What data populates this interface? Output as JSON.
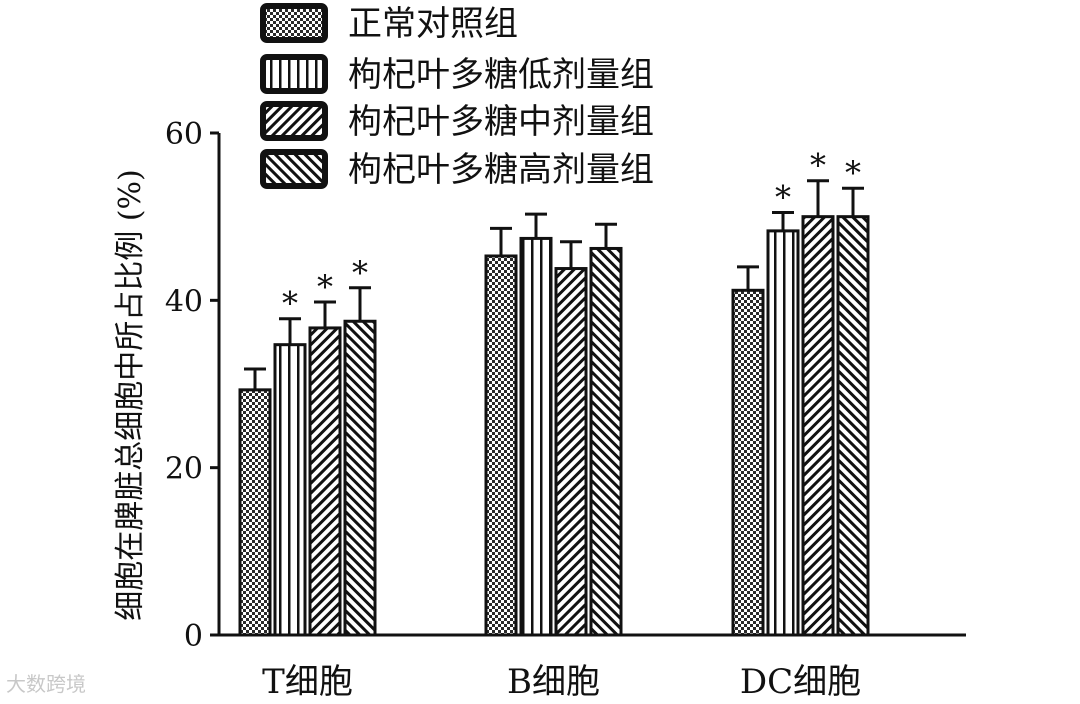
{
  "chart_data": {
    "type": "bar",
    "categories": [
      "T细胞",
      "B细胞",
      "DC细胞"
    ],
    "ylabel": "细胞在脾脏总细胞中所占比例 (%)",
    "xlabel": "",
    "ylim": [
      0,
      60
    ],
    "yticks": [
      0,
      20,
      40,
      60
    ],
    "legend_position": "top",
    "series": [
      {
        "name": "正常对照组",
        "pattern": "checker",
        "values": [
          29.3,
          45.3,
          41.2
        ],
        "errors": [
          2.5,
          3.3,
          2.8
        ],
        "significant": [
          false,
          false,
          false
        ]
      },
      {
        "name": "枸杞叶多糖低剂量组",
        "pattern": "vertical",
        "values": [
          34.7,
          47.4,
          48.3
        ],
        "errors": [
          3.1,
          2.9,
          2.2
        ],
        "significant": [
          true,
          false,
          true
        ]
      },
      {
        "name": "枸杞叶多糖中剂量组",
        "pattern": "diag-right",
        "values": [
          36.7,
          43.8,
          50.0
        ],
        "errors": [
          3.1,
          3.2,
          4.3
        ],
        "significant": [
          true,
          false,
          true
        ]
      },
      {
        "name": "枸杞叶多糖高剂量组",
        "pattern": "diag-left",
        "values": [
          37.5,
          46.2,
          50.0
        ],
        "errors": [
          4.0,
          2.9,
          3.4
        ],
        "significant": [
          true,
          false,
          true
        ]
      }
    ],
    "significance_marker": "*"
  },
  "watermark": "大数跨境"
}
